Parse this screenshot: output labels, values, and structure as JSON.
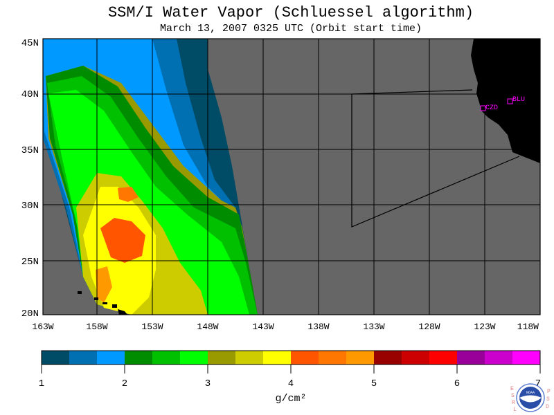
{
  "title": "SSM/I Water Vapor (Schluessel algorithm)",
  "subtitle": "March 13, 2007  0325 UTC  (Orbit start time)",
  "colors": {
    "ocean_missing": "#666666",
    "land": "#000000",
    "frame": "#000000",
    "station": "#ff00ff",
    "palette": [
      "#004c66",
      "#0070b3",
      "#0099ff",
      "#008c00",
      "#00c000",
      "#00ff00",
      "#999900",
      "#cccc00",
      "#ffff00",
      "#ff5500",
      "#ff7700",
      "#ff9900",
      "#990000",
      "#cc0000",
      "#ff0000",
      "#990099",
      "#cc00cc",
      "#ff00ff"
    ]
  },
  "map": {
    "lat_labels": [
      "45N",
      "40N",
      "35N",
      "30N",
      "25N",
      "20N"
    ],
    "lon_labels": [
      "163W",
      "158W",
      "153W",
      "148W",
      "143W",
      "138W",
      "133W",
      "128W",
      "123W",
      "118W"
    ],
    "stations": [
      {
        "label": "CZD",
        "icon": "square-marker-icon"
      },
      {
        "label": "BLU",
        "icon": "square-marker-icon"
      }
    ]
  },
  "colorbar": {
    "tick_labels": [
      "1",
      "2",
      "3",
      "4",
      "5",
      "6",
      "7"
    ],
    "unit": "g/cm²"
  },
  "logo": {
    "left_letters": [
      "E",
      "S",
      "R",
      "L"
    ],
    "right_letters": [
      "P",
      "S",
      "D"
    ],
    "center": "NOAA",
    "icon": "noaa-logo-icon"
  }
}
